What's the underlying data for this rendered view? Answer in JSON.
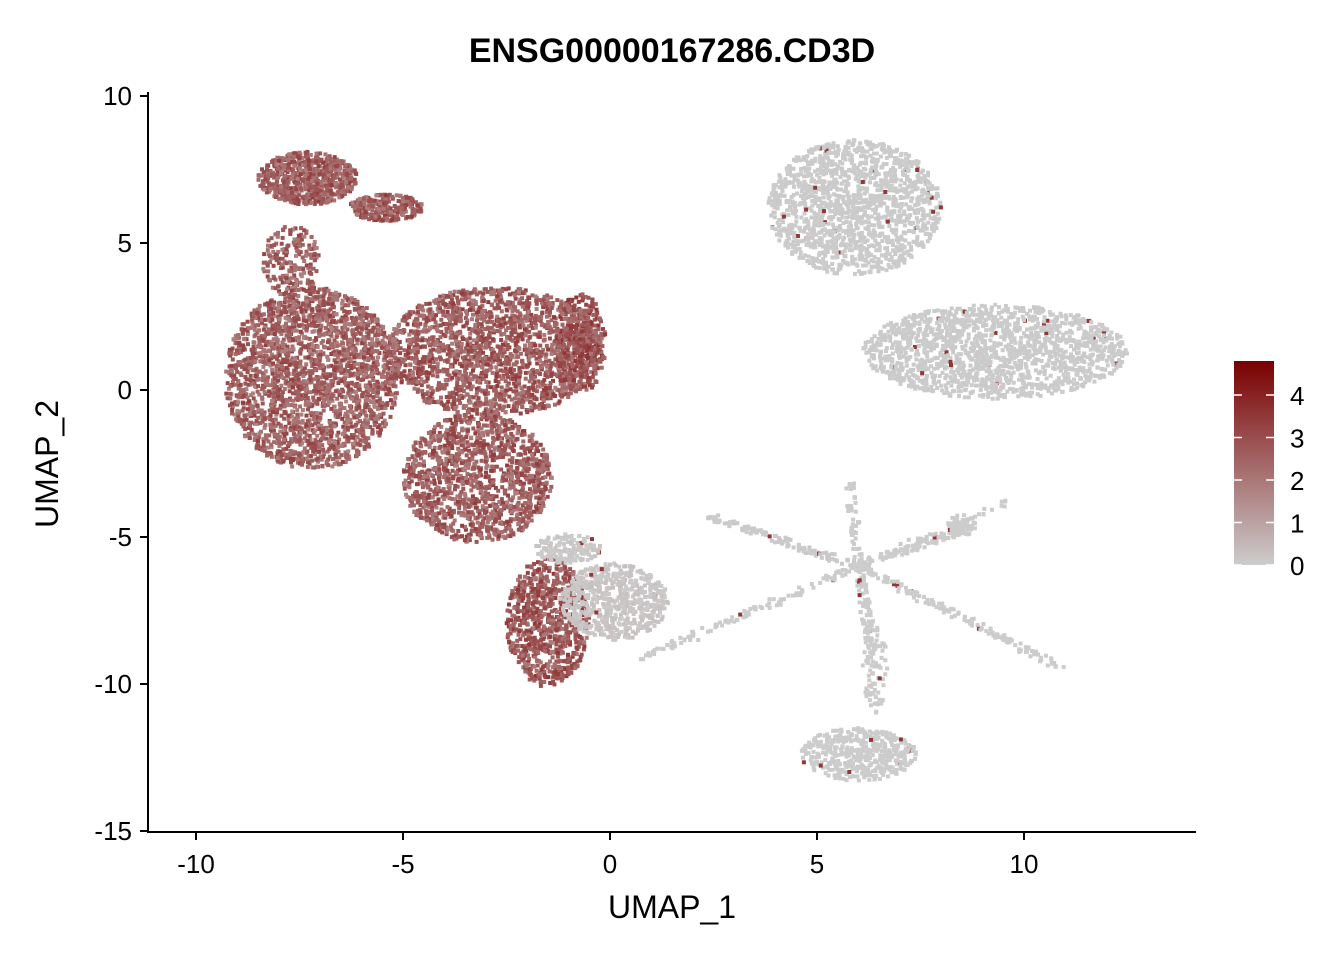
{
  "chart_data": {
    "type": "scatter",
    "title": "ENSG00000167286.CD3D",
    "xlabel": "UMAP_1",
    "ylabel": "UMAP_2",
    "xlim": [
      -11.16,
      14.15
    ],
    "ylim": [
      -15.1,
      10.2
    ],
    "xticks": [
      "-10",
      "-5",
      "0",
      "5",
      "10"
    ],
    "yticks": [
      "10",
      "5",
      "0",
      "-5",
      "-10",
      "-15"
    ],
    "grid": false,
    "legend": {
      "placement": "right",
      "type": "colorbar",
      "min": 0,
      "max": 4.8,
      "ticks": [
        "4",
        "3",
        "2",
        "1",
        "0"
      ],
      "low_color": "#cccccc",
      "high_color": "#7a0000"
    },
    "clusters": [
      {
        "center": [
          -7.3,
          7.2
        ],
        "radius": [
          1.2,
          0.9
        ],
        "n": 700,
        "expression": 2.6
      },
      {
        "center": [
          -5.4,
          6.2
        ],
        "radius": [
          0.9,
          0.45
        ],
        "n": 250,
        "expression": 2.6
      },
      {
        "center": [
          -7.7,
          4.4
        ],
        "radius": [
          0.7,
          1.2
        ],
        "n": 180,
        "expression": 2.4
      },
      {
        "center": [
          -7.2,
          0.4
        ],
        "radius": [
          2.1,
          3.1
        ],
        "n": 2300,
        "expression": 2.5
      },
      {
        "center": [
          -2.8,
          1.3
        ],
        "radius": [
          2.6,
          2.2
        ],
        "n": 1900,
        "expression": 2.6
      },
      {
        "center": [
          -0.7,
          1.6
        ],
        "radius": [
          0.6,
          1.7
        ],
        "n": 350,
        "expression": 2.8
      },
      {
        "center": [
          -3.2,
          -3.0
        ],
        "radius": [
          1.8,
          2.2
        ],
        "n": 1300,
        "expression": 2.6
      },
      {
        "center": [
          -1.5,
          -7.9
        ],
        "radius": [
          1.0,
          2.2
        ],
        "n": 800,
        "expression": 2.7
      },
      {
        "center": [
          0.1,
          -7.2
        ],
        "radius": [
          1.3,
          1.3
        ],
        "n": 650,
        "expression": 0.3
      },
      {
        "center": [
          -1.0,
          -5.4
        ],
        "radius": [
          0.8,
          0.5
        ],
        "n": 150,
        "expression": 0.2
      },
      {
        "center": [
          5.9,
          6.2
        ],
        "radius": [
          2.1,
          2.3
        ],
        "n": 1500,
        "expression": 0.05
      },
      {
        "center": [
          9.3,
          1.3
        ],
        "radius": [
          3.2,
          1.6
        ],
        "n": 1600,
        "expression": 0.05
      },
      {
        "center": [
          6.0,
          -12.4
        ],
        "radius": [
          1.4,
          0.9
        ],
        "n": 450,
        "expression": 0.0
      },
      {
        "center": [
          6.4,
          -9.5
        ],
        "radius": [
          0.3,
          1.5
        ],
        "n": 90,
        "expression": 0.0
      },
      {
        "center": [
          8.5,
          -4.6
        ],
        "radius": [
          0.35,
          0.35
        ],
        "n": 60,
        "expression": 0.0
      }
    ],
    "branches": [
      {
        "from": [
          6.0,
          -6.0
        ],
        "to": [
          2.4,
          -4.3
        ],
        "n": 120,
        "expression": 0.1
      },
      {
        "from": [
          6.0,
          -6.0
        ],
        "to": [
          8.8,
          -4.6
        ],
        "n": 110,
        "expression": 0.0
      },
      {
        "from": [
          6.0,
          -6.0
        ],
        "to": [
          11.0,
          -9.5
        ],
        "n": 160,
        "expression": 0.0
      },
      {
        "from": [
          6.0,
          -6.0
        ],
        "to": [
          0.8,
          -9.1
        ],
        "n": 120,
        "expression": 0.0
      },
      {
        "from": [
          6.0,
          -6.0
        ],
        "to": [
          5.8,
          -3.2
        ],
        "n": 50,
        "expression": 0.0
      },
      {
        "from": [
          6.0,
          -6.0
        ],
        "to": [
          6.3,
          -8.5
        ],
        "n": 80,
        "expression": 0.0
      },
      {
        "from": [
          6.0,
          -6.0
        ],
        "to": [
          9.9,
          -3.7
        ],
        "n": 40,
        "expression": 0.0
      }
    ]
  }
}
